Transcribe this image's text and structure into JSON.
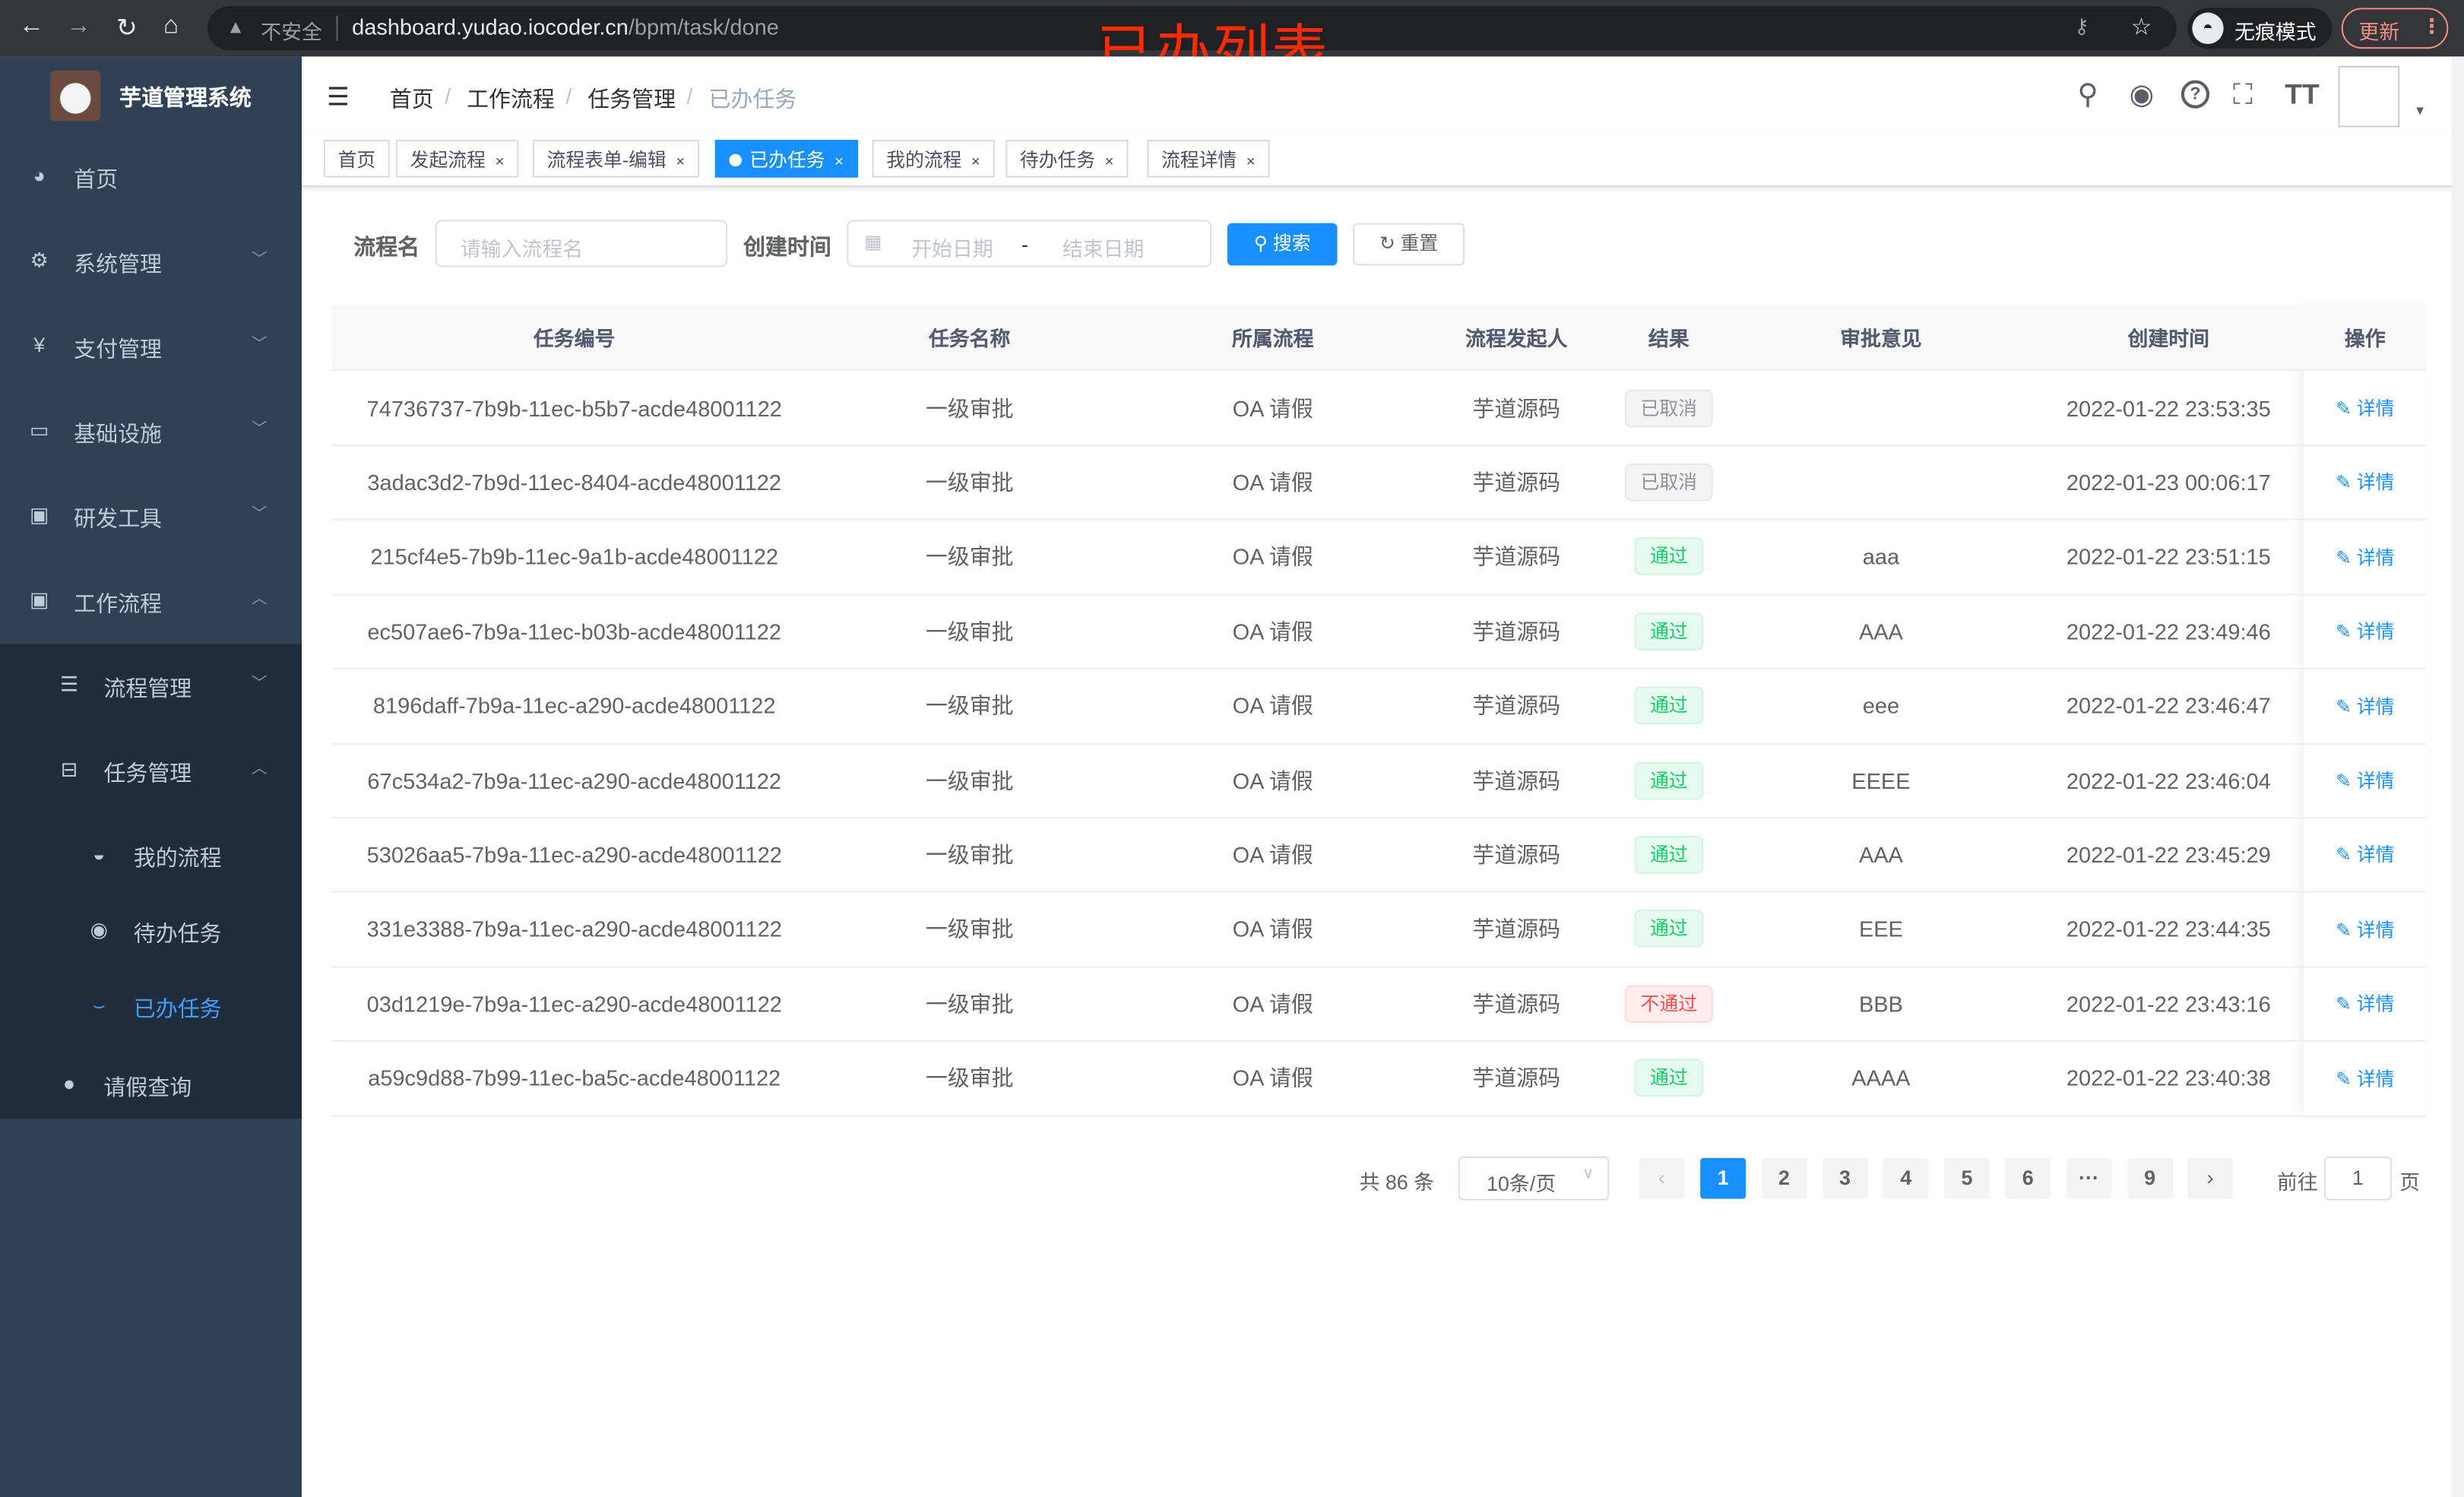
{
  "browser": {
    "insecure_label": "不安全",
    "url_host": "dashboard.yudao.iocoder.cn",
    "url_path": "/bpm/task/done",
    "incognito_label": "无痕模式",
    "update_label": "更新"
  },
  "annotation": "已办列表",
  "sidebar": {
    "title": "芋道管理系统",
    "items": [
      {
        "label": "首页",
        "icon": "dashboard-icon"
      },
      {
        "label": "系统管理",
        "icon": "gear-icon"
      },
      {
        "label": "支付管理",
        "icon": "yen-icon"
      },
      {
        "label": "基础设施",
        "icon": "monitor-icon"
      },
      {
        "label": "研发工具",
        "icon": "toolbox-icon"
      },
      {
        "label": "工作流程",
        "icon": "toolbox-icon"
      }
    ],
    "sub": [
      {
        "label": "流程管理",
        "icon": "list-icon"
      },
      {
        "label": "任务管理",
        "icon": "tree-icon"
      },
      {
        "label": "我的流程",
        "icon": "user-icon"
      },
      {
        "label": "待办任务",
        "icon": "eye-icon"
      },
      {
        "label": "已办任务",
        "icon": "check-icon",
        "active": true
      },
      {
        "label": "请假查询",
        "icon": "person-icon"
      }
    ]
  },
  "breadcrumb": [
    "首页",
    "工作流程",
    "任务管理",
    "已办任务"
  ],
  "tags": [
    {
      "label": "首页"
    },
    {
      "label": "发起流程"
    },
    {
      "label": "流程表单-编辑"
    },
    {
      "label": "已办任务",
      "active": true
    },
    {
      "label": "我的流程"
    },
    {
      "label": "待办任务"
    },
    {
      "label": "流程详情"
    }
  ],
  "search": {
    "name_label": "流程名",
    "name_placeholder": "请输入流程名",
    "time_label": "创建时间",
    "start_placeholder": "开始日期",
    "range_sep": "-",
    "end_placeholder": "结束日期",
    "search_button": "搜索",
    "reset_button": "重置"
  },
  "table": {
    "columns": [
      "任务编号",
      "任务名称",
      "所属流程",
      "流程发起人",
      "结果",
      "审批意见",
      "创建时间",
      "操作"
    ],
    "action_label": "详情",
    "rows": [
      {
        "id": "74736737-7b9b-11ec-b5b7-acde48001122",
        "name": "一级审批",
        "process": "OA 请假",
        "starter": "芋道源码",
        "result": "已取消",
        "status": "info",
        "comment": "",
        "time": "2022-01-22 23:53:35"
      },
      {
        "id": "3adac3d2-7b9d-11ec-8404-acde48001122",
        "name": "一级审批",
        "process": "OA 请假",
        "starter": "芋道源码",
        "result": "已取消",
        "status": "info",
        "comment": "",
        "time": "2022-01-23 00:06:17"
      },
      {
        "id": "215cf4e5-7b9b-11ec-9a1b-acde48001122",
        "name": "一级审批",
        "process": "OA 请假",
        "starter": "芋道源码",
        "result": "通过",
        "status": "success",
        "comment": "aaa",
        "time": "2022-01-22 23:51:15"
      },
      {
        "id": "ec507ae6-7b9a-11ec-b03b-acde48001122",
        "name": "一级审批",
        "process": "OA 请假",
        "starter": "芋道源码",
        "result": "通过",
        "status": "success",
        "comment": "AAA",
        "time": "2022-01-22 23:49:46"
      },
      {
        "id": "8196daff-7b9a-11ec-a290-acde48001122",
        "name": "一级审批",
        "process": "OA 请假",
        "starter": "芋道源码",
        "result": "通过",
        "status": "success",
        "comment": "eee",
        "time": "2022-01-22 23:46:47"
      },
      {
        "id": "67c534a2-7b9a-11ec-a290-acde48001122",
        "name": "一级审批",
        "process": "OA 请假",
        "starter": "芋道源码",
        "result": "通过",
        "status": "success",
        "comment": "EEEE",
        "time": "2022-01-22 23:46:04"
      },
      {
        "id": "53026aa5-7b9a-11ec-a290-acde48001122",
        "name": "一级审批",
        "process": "OA 请假",
        "starter": "芋道源码",
        "result": "通过",
        "status": "success",
        "comment": "AAA",
        "time": "2022-01-22 23:45:29"
      },
      {
        "id": "331e3388-7b9a-11ec-a290-acde48001122",
        "name": "一级审批",
        "process": "OA 请假",
        "starter": "芋道源码",
        "result": "通过",
        "status": "success",
        "comment": "EEE",
        "time": "2022-01-22 23:44:35"
      },
      {
        "id": "03d1219e-7b9a-11ec-a290-acde48001122",
        "name": "一级审批",
        "process": "OA 请假",
        "starter": "芋道源码",
        "result": "不通过",
        "status": "danger",
        "comment": "BBB",
        "time": "2022-01-22 23:43:16"
      },
      {
        "id": "a59c9d88-7b99-11ec-ba5c-acde48001122",
        "name": "一级审批",
        "process": "OA 请假",
        "starter": "芋道源码",
        "result": "通过",
        "status": "success",
        "comment": "AAAA",
        "time": "2022-01-22 23:40:38"
      }
    ]
  },
  "pagination": {
    "total_text": "共 86 条",
    "page_size": "10条/页",
    "pages": [
      "1",
      "2",
      "3",
      "4",
      "5",
      "6",
      "···",
      "9"
    ],
    "current": "1",
    "goto_label": "前往",
    "goto_value": "1",
    "page_suffix": "页"
  },
  "colors": {
    "accent": "#1890ff",
    "sidebar_bg": "#304156",
    "submenu_bg": "#1f2d3d",
    "success": "#13ce66",
    "danger": "#ff4949",
    "info": "#909399"
  }
}
